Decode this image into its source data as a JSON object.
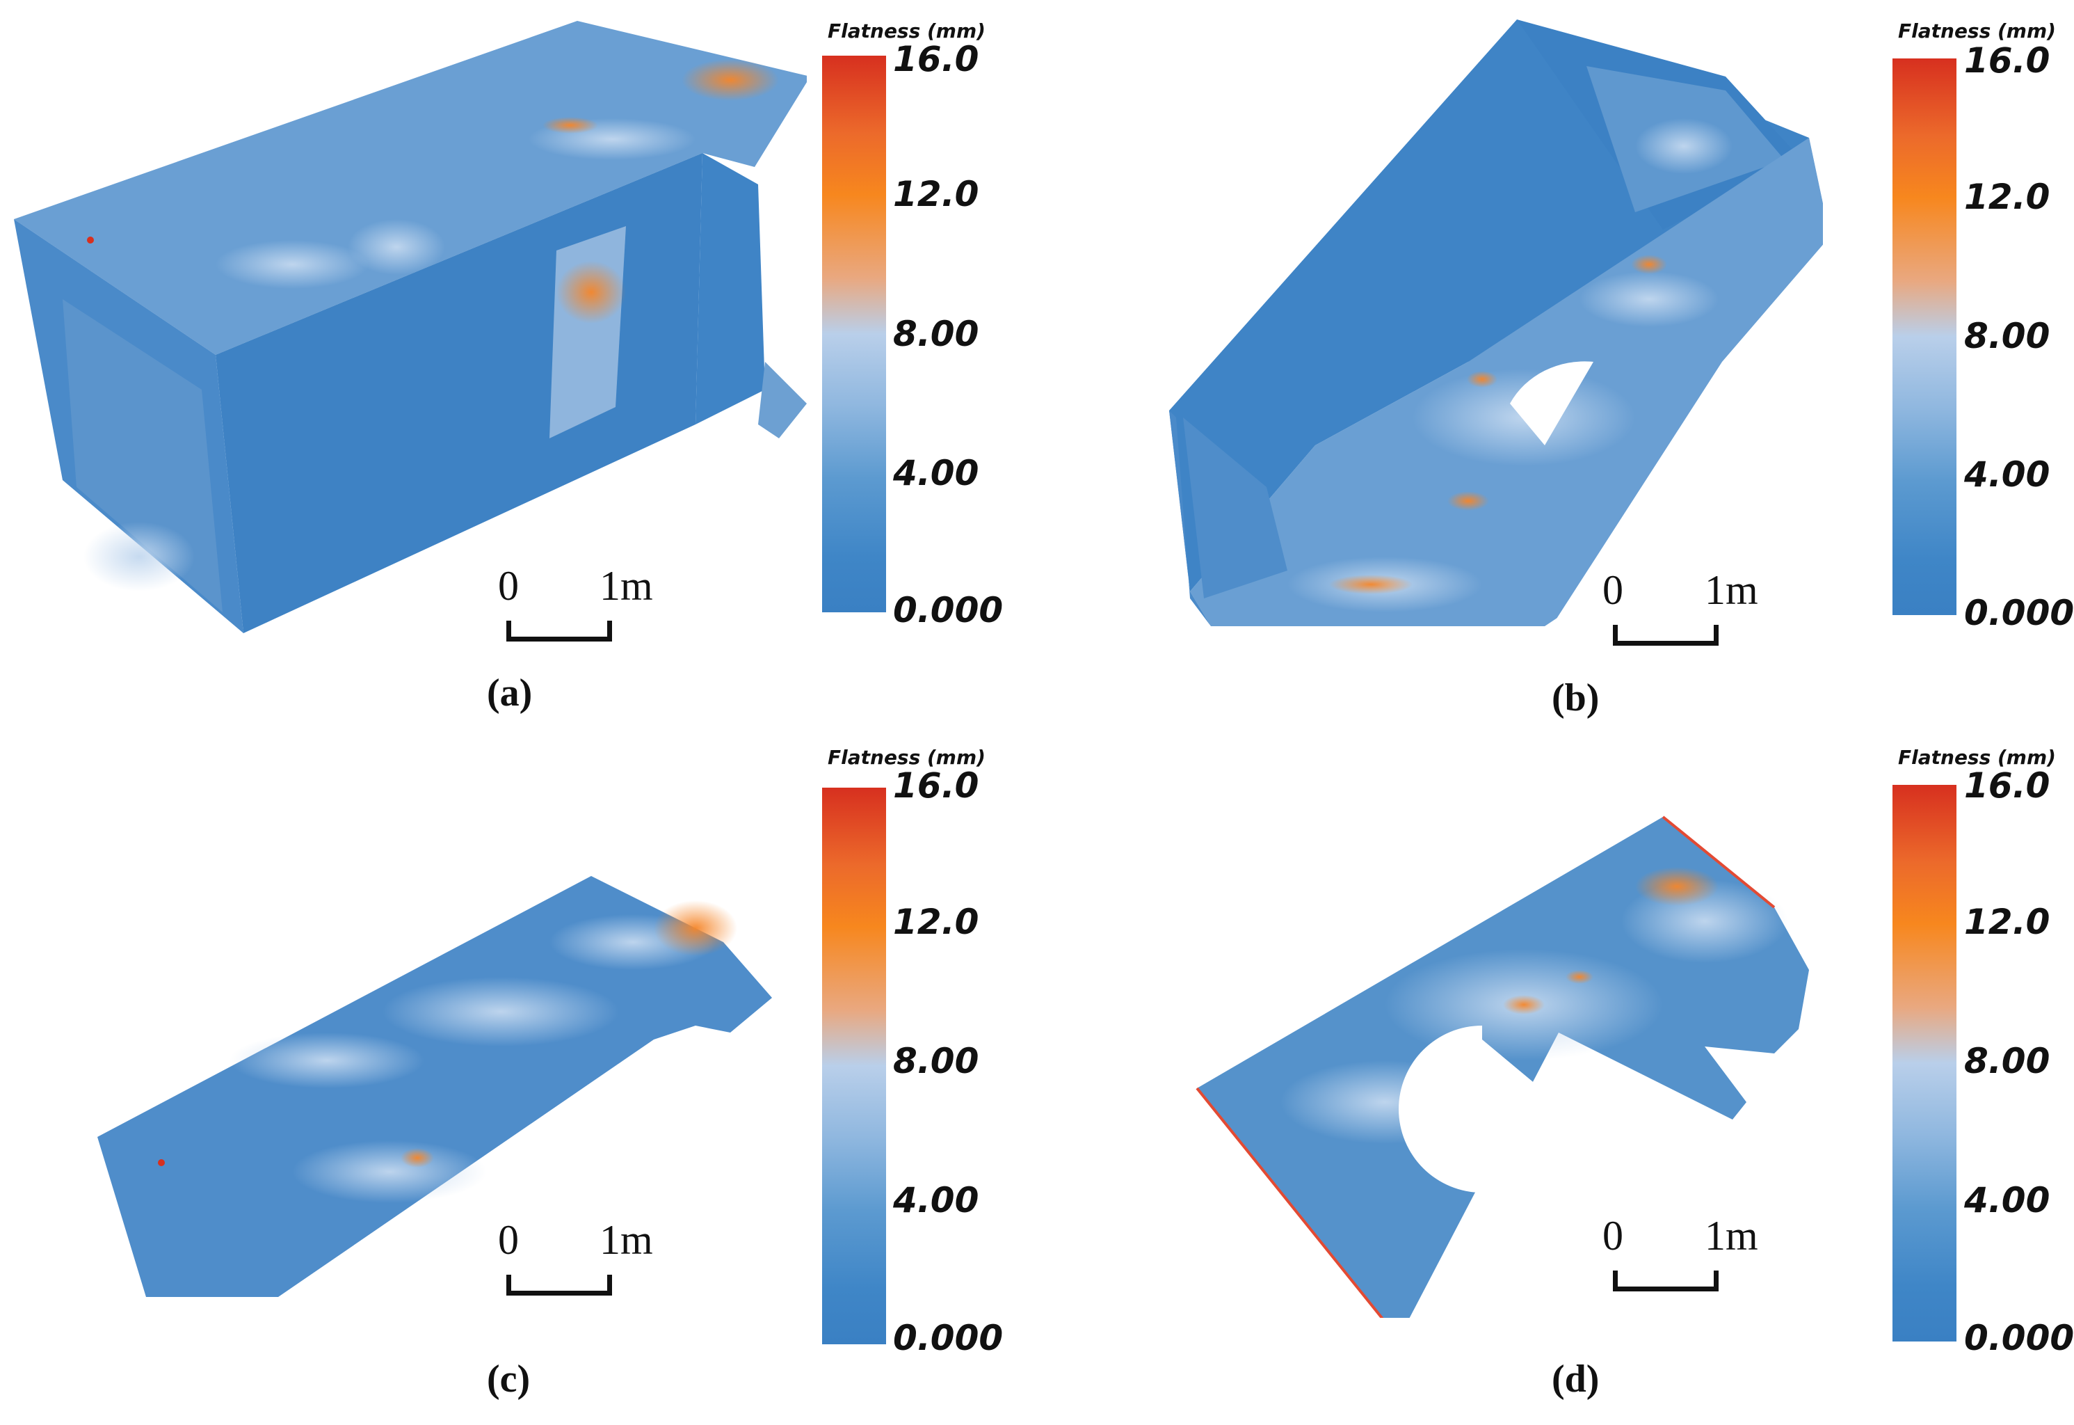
{
  "colorbar": {
    "title": "Flatness (mm)",
    "ticks": [
      "16.0",
      "12.0",
      "8.00",
      "4.00",
      "0.000"
    ],
    "colors": [
      "#d7301f",
      "#f7871e",
      "#b9cfea",
      "#3a80c3"
    ]
  },
  "scalebar": {
    "start": "0",
    "end": "1m"
  },
  "panels": [
    {
      "caption": "(a)"
    },
    {
      "caption": "(b)"
    },
    {
      "caption": "(c)"
    },
    {
      "caption": "(d)"
    }
  ]
}
